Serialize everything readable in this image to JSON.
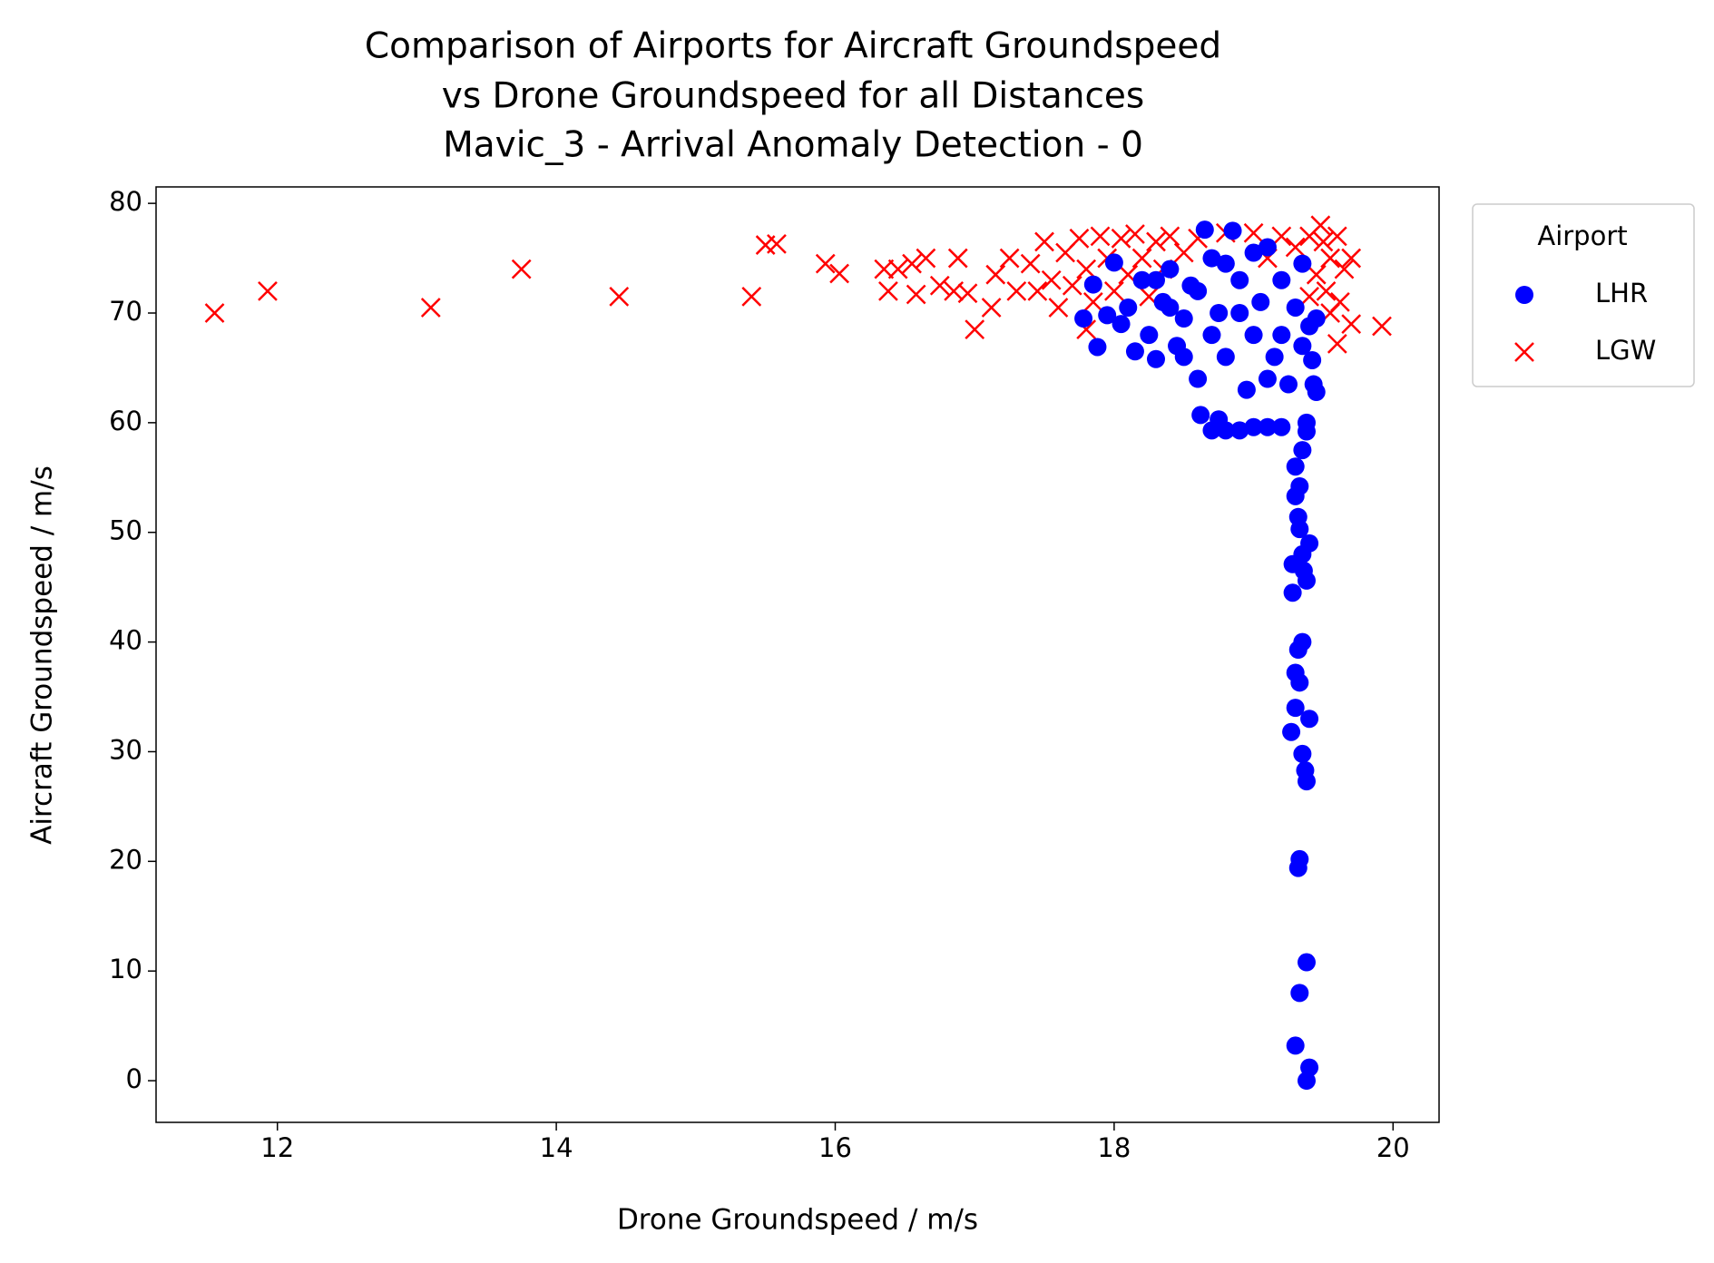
{
  "chart_data": {
    "type": "scatter",
    "title": [
      "Comparison of Airports for Aircraft Groundspeed",
      "vs Drone Groundspeed for all Distances",
      "Mavic_3 - Arrival Anomaly Detection - 0"
    ],
    "xlabel": "Drone Groundspeed / m/s",
    "ylabel": "Aircraft Groundspeed / m/s",
    "xlim": [
      11.13,
      20.33
    ],
    "ylim": [
      -3.8,
      81.5
    ],
    "xticks": [
      12,
      14,
      16,
      18,
      20
    ],
    "yticks": [
      0,
      10,
      20,
      30,
      40,
      50,
      60,
      70,
      80
    ],
    "legend_title": "Airport",
    "legend": "outside upper right",
    "series": [
      {
        "name": "LHR",
        "color": "#0000ff",
        "marker": "o",
        "x": [
          19.38,
          19.4,
          19.3,
          19.33,
          19.38,
          19.32,
          19.33,
          19.38,
          19.37,
          19.35,
          19.27,
          19.4,
          19.3,
          19.33,
          19.3,
          19.35,
          19.32,
          19.28,
          19.28,
          19.38,
          19.36,
          19.4,
          19.35,
          19.33,
          19.32,
          19.3,
          19.33,
          19.3,
          19.35,
          19.38,
          19.38,
          19.45,
          19.43,
          19.42,
          19.35,
          19.4,
          18.7,
          18.8,
          18.9,
          19.0,
          19.1,
          19.2,
          18.62,
          18.75,
          17.78,
          17.85,
          17.88,
          17.95,
          18.0,
          18.05,
          18.1,
          18.15,
          18.2,
          18.25,
          18.3,
          18.35,
          18.4,
          18.45,
          18.5,
          18.55,
          18.6,
          18.65,
          18.7,
          18.75,
          18.8,
          18.85,
          18.9,
          18.95,
          19.0,
          19.05,
          19.1,
          19.15,
          19.2,
          19.25,
          19.3,
          19.35,
          19.45,
          18.7,
          18.9,
          19.1,
          18.6,
          18.8,
          19.0,
          18.5,
          19.2,
          18.4,
          18.3
        ],
        "y": [
          0,
          1.2,
          3.2,
          8,
          10.8,
          19.4,
          20.2,
          27.3,
          28.3,
          29.8,
          31.8,
          33,
          34,
          36.3,
          37.2,
          40,
          39.3,
          44.5,
          47.1,
          45.6,
          46.5,
          49,
          48,
          50.3,
          51.4,
          53.3,
          54.2,
          56,
          57.5,
          59.2,
          60,
          62.8,
          63.5,
          65.7,
          67,
          68.8,
          59.3,
          59.3,
          59.3,
          59.6,
          59.6,
          59.6,
          60.7,
          60.3,
          69.5,
          72.6,
          66.9,
          69.8,
          74.6,
          69,
          70.5,
          66.5,
          73,
          68,
          65.8,
          71,
          74,
          67,
          69.5,
          72.5,
          64,
          77.6,
          75,
          70,
          66,
          77.5,
          73,
          63,
          68,
          71,
          76,
          66,
          73,
          63.5,
          70.5,
          74.5,
          69.5,
          68,
          70,
          64,
          72,
          74.5,
          75.5,
          66,
          68,
          70.5,
          73
        ]
      },
      {
        "name": "LGW",
        "color": "#ff0000",
        "marker": "x",
        "x": [
          11.55,
          11.93,
          13.1,
          13.75,
          14.45,
          15.4,
          15.5,
          15.58,
          15.93,
          16.03,
          16.35,
          16.38,
          16.45,
          16.55,
          16.58,
          16.65,
          16.75,
          16.85,
          16.88,
          16.95,
          17.0,
          17.12,
          17.15,
          17.25,
          17.3,
          17.4,
          17.45,
          17.5,
          17.55,
          17.6,
          17.65,
          17.7,
          17.75,
          17.8,
          17.85,
          17.9,
          17.95,
          18.0,
          18.05,
          18.1,
          18.15,
          18.2,
          18.25,
          18.3,
          18.35,
          18.4,
          18.5,
          18.6,
          18.8,
          19.0,
          19.1,
          19.2,
          19.3,
          19.4,
          19.45,
          19.5,
          19.52,
          19.55,
          19.6,
          19.62,
          19.65,
          19.7,
          19.6,
          19.7,
          19.92,
          19.55,
          17.8,
          19.4,
          19.48
        ],
        "y": [
          70,
          72,
          70.5,
          74,
          71.5,
          71.5,
          76.2,
          76.3,
          74.5,
          73.6,
          74,
          72,
          74,
          74.5,
          71.7,
          75,
          72.5,
          72,
          75,
          71.8,
          68.5,
          70.5,
          73.5,
          75,
          72,
          74.5,
          72,
          76.5,
          73,
          70.5,
          75.5,
          72.5,
          76.8,
          74,
          71,
          77,
          75,
          72,
          76.8,
          73.5,
          77.2,
          75,
          71.5,
          76.5,
          74,
          77,
          75.5,
          76.8,
          77.3,
          77.3,
          75,
          77,
          76,
          77,
          73.5,
          76.5,
          72,
          75,
          77,
          71,
          74,
          75,
          67.2,
          69,
          68.8,
          70,
          68.5,
          71.5,
          78
        ]
      }
    ]
  }
}
